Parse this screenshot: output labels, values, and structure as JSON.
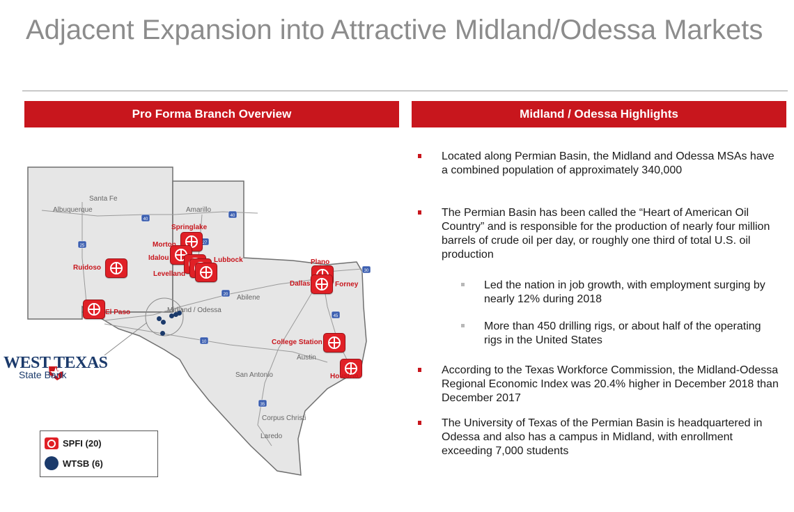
{
  "title": "Adjacent Expansion into Attractive Midland/Odessa Markets",
  "panels": {
    "left_header": "Pro Forma Branch Overview",
    "right_header": "Midland / Odessa Highlights"
  },
  "map": {
    "cities_gray": {
      "santa_fe": "Santa Fe",
      "albuquerque": "Albuquerque",
      "amarillo": "Amarillo",
      "midland_odessa": "Midland / Odessa",
      "abilene": "Abilene",
      "austin": "Austin",
      "san_antonio": "San Antonio",
      "corpus_christi": "Corpus Christi",
      "laredo": "Laredo"
    },
    "branches": {
      "springlake": "Springlake",
      "morton": "Morton",
      "idalou": "Idalou",
      "lubbock": "Lubbock",
      "levelland": "Levelland",
      "ruidoso": "Ruidoso",
      "el_paso": "El Paso",
      "plano": "Plano",
      "dallas": "Dallas",
      "forney": "Forney",
      "college_station": "College Station",
      "houston": "Houston"
    },
    "highways": {
      "i40_nm": "40",
      "i40_tx": "40",
      "i25": "25",
      "i27": "27",
      "i20": "20",
      "i30": "30",
      "i45": "45",
      "i10": "10",
      "i35": "35"
    },
    "bank_logo": {
      "line1": "WEST TEXAS",
      "line2": "State Bank"
    },
    "legend": {
      "spfi": "SPFI (20)",
      "wtsb": "WTSB (6)"
    },
    "colors": {
      "spfi_pin": "#e02026",
      "wtsb_dot": "#1b3a6b",
      "state_fill": "#e6e6e6"
    }
  },
  "highlights": [
    "Located along Permian Basin, the Midland and Odessa MSAs have a combined population of approximately 340,000",
    "The Permian Basin has been called the “Heart of American Oil Country” and is responsible for the production of nearly four million barrels of crude oil per day, or roughly one third of total U.S. oil production",
    "Led the nation in job growth, with employment surging by nearly 12% during 2018",
    "More than 450 drilling rigs, or about half of the operating rigs in the United States",
    "According to the Texas Workforce Commission, the Midland-Odessa Regional Economic Index was 20.4% higher in December 2018 than December 2017",
    "The University of Texas of the Permian Basin is headquartered in Odessa and also has a campus in Midland, with enrollment exceeding 7,000 students"
  ]
}
